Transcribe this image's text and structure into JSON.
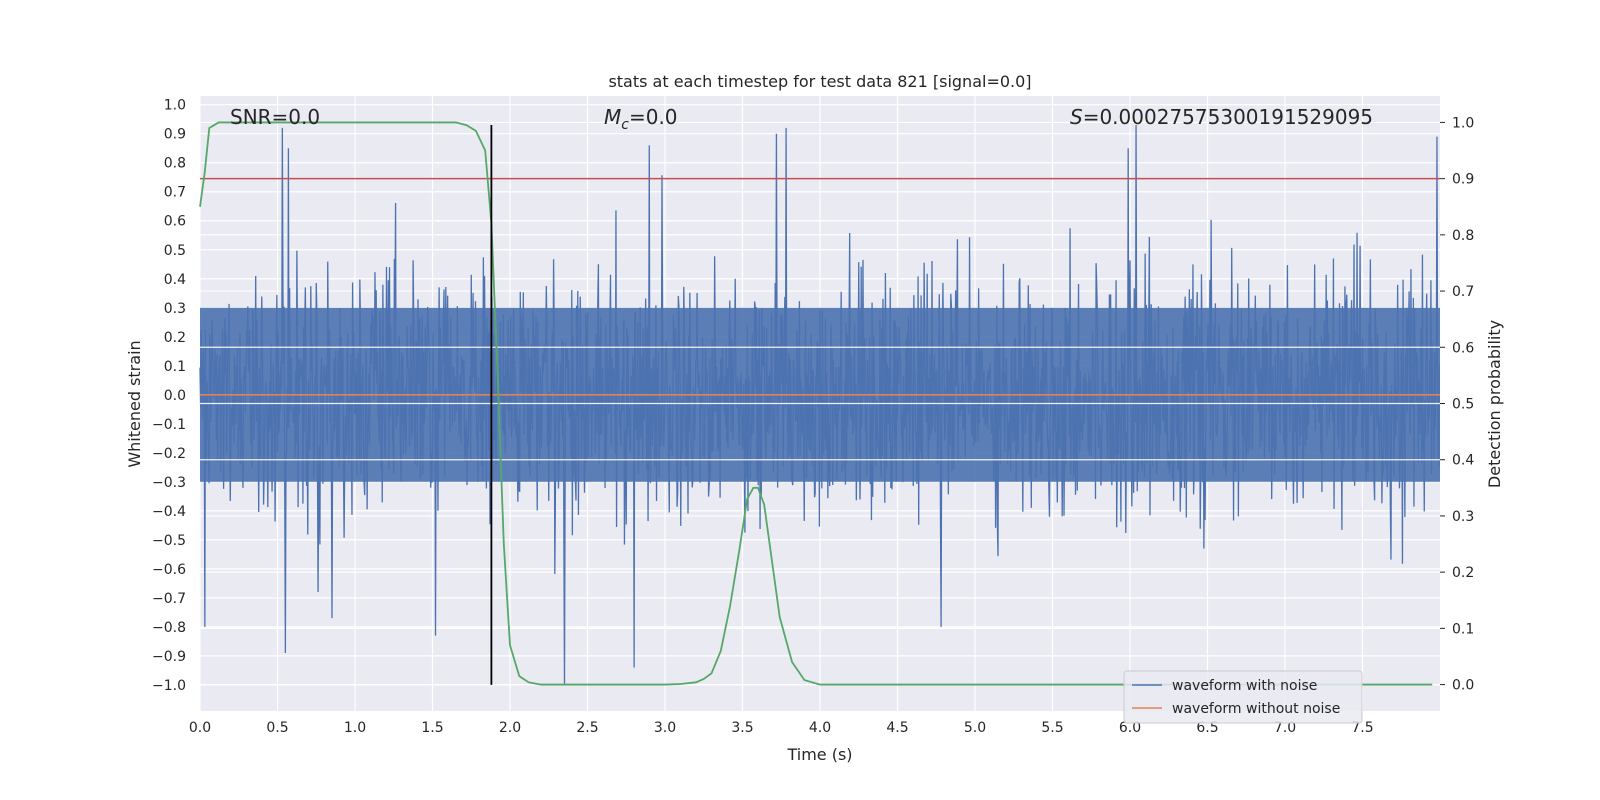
{
  "chart_data": {
    "type": "line",
    "title": "stats at each timestep for test data 821 [signal=0.0]",
    "xlabel": "Time (s)",
    "ylabel_left": "Whitened strain",
    "ylabel_right": "Detection probability",
    "xlim": [
      0.0,
      8.0
    ],
    "ylim_left": [
      -1.09,
      1.03
    ],
    "ylim_right": [
      -0.047,
      1.047
    ],
    "x_ticks": [
      "0.0",
      "0.5",
      "1.0",
      "1.5",
      "2.0",
      "2.5",
      "3.0",
      "3.5",
      "4.0",
      "4.5",
      "5.0",
      "5.5",
      "6.0",
      "6.5",
      "7.0",
      "7.5"
    ],
    "y_left_ticks": [
      "1.0",
      "0.9",
      "0.8",
      "0.7",
      "0.6",
      "0.5",
      "0.4",
      "0.3",
      "0.2",
      "0.1",
      "0.0",
      "−0.1",
      "−0.2",
      "−0.3",
      "−0.4",
      "−0.5",
      "−0.6",
      "−0.7",
      "−0.8",
      "−0.9",
      "−1.0"
    ],
    "y_right_ticks": [
      "1.0",
      "0.9",
      "0.8",
      "0.7",
      "0.6",
      "0.5",
      "0.4",
      "0.3",
      "0.2",
      "0.1",
      "0.0"
    ],
    "grid": true,
    "legend_position": "lower-right",
    "annotations": {
      "snr": "SNR=0.0",
      "mc_symbol": "M",
      "mc_sub": "c",
      "mc_value": "=0.0",
      "s_symbol": "S",
      "s_value": "=0.00027575300191529095"
    },
    "series": [
      {
        "name": "waveform with noise",
        "color": "#4c72b0",
        "axis": "left",
        "description_type": "noise",
        "sample_rate": 256,
        "spikes": [
          [
            0.53,
            0.92
          ],
          [
            0.57,
            0.85
          ],
          [
            0.55,
            -0.89
          ],
          [
            0.03,
            -0.8
          ],
          [
            0.85,
            -0.77
          ],
          [
            1.52,
            -0.83
          ],
          [
            2.35,
            -1.0
          ],
          [
            2.8,
            -0.94
          ],
          [
            3.78,
            0.92
          ],
          [
            4.78,
            -0.8
          ],
          [
            6.04,
            0.93
          ],
          [
            5.99,
            0.85
          ],
          [
            7.98,
            0.89
          ],
          [
            2.9,
            0.86
          ],
          [
            3.72,
            0.9
          ]
        ]
      },
      {
        "name": "waveform without noise",
        "color": "#dd8452",
        "axis": "left",
        "x": [
          0.0,
          8.0
        ],
        "values": [
          0.0,
          0.0
        ]
      },
      {
        "name": "detection probability",
        "color": "#55a868",
        "axis": "right",
        "x": [
          0.0,
          0.03,
          0.06,
          0.12,
          0.25,
          0.5,
          1.0,
          1.5,
          1.65,
          1.72,
          1.78,
          1.84,
          1.88,
          1.92,
          1.96,
          2.0,
          2.06,
          2.12,
          2.2,
          2.4,
          2.6,
          2.8,
          3.0,
          3.1,
          3.2,
          3.25,
          3.3,
          3.36,
          3.42,
          3.48,
          3.53,
          3.57,
          3.6,
          3.64,
          3.68,
          3.74,
          3.82,
          3.9,
          4.0,
          4.5,
          5.0,
          6.0,
          7.0,
          7.95
        ],
        "values": [
          0.85,
          0.91,
          0.99,
          1.0,
          1.0,
          1.0,
          1.0,
          1.0,
          1.0,
          0.995,
          0.985,
          0.95,
          0.82,
          0.55,
          0.25,
          0.07,
          0.015,
          0.004,
          0.0,
          0.0,
          0.0,
          0.0,
          0.0,
          0.001,
          0.004,
          0.01,
          0.02,
          0.06,
          0.14,
          0.24,
          0.33,
          0.35,
          0.35,
          0.32,
          0.24,
          0.12,
          0.04,
          0.008,
          0.0,
          0.0,
          0.0,
          0.0,
          0.0,
          0.0
        ]
      }
    ],
    "reference_lines": [
      {
        "type": "vertical",
        "x": 1.88,
        "ymin": -1.0,
        "ymax": 0.93,
        "color": "#000000"
      },
      {
        "type": "horizontal",
        "axis": "right",
        "y": 0.9,
        "color": "#c44e52"
      }
    ],
    "colors": {
      "axes_background": "#eaeaf2",
      "grid": "#ffffff"
    }
  }
}
